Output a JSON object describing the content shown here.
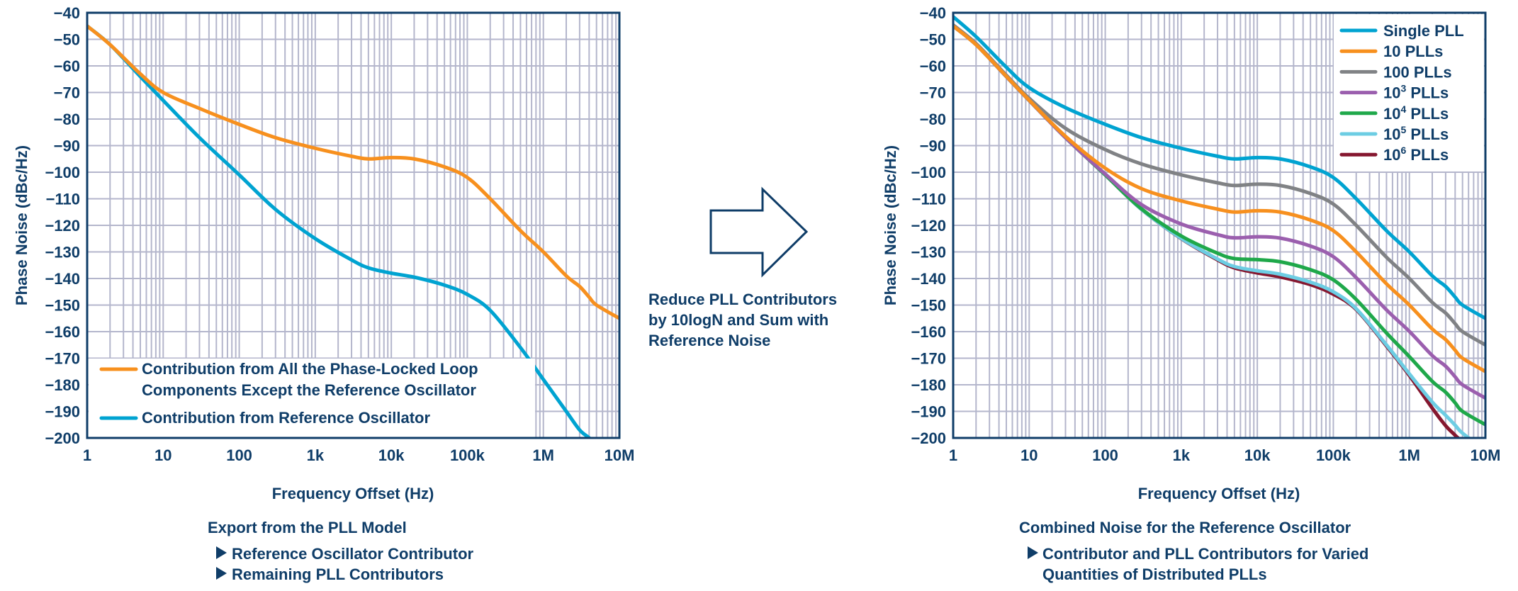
{
  "colors": {
    "text": "#0f3d68",
    "grid": "#b4b6cc",
    "axis": "#0f3d68"
  },
  "arrow_text": [
    "Reduce PLL Contributors",
    "by 10logN and Sum with",
    "Reference Noise"
  ],
  "chart_data": [
    {
      "type": "line",
      "xscale": "log",
      "xlabel": "Frequency Offset (Hz)",
      "ylabel": "Phase Noise (dBc/Hz)",
      "xlim": [
        1,
        10000000
      ],
      "ylim": [
        -200,
        -40
      ],
      "grid": true,
      "legend_position": "bottom-left",
      "x_ticks": [
        "1",
        "10",
        "100",
        "1k",
        "10k",
        "100k",
        "1M",
        "10M"
      ],
      "y_ticks": [
        "−40",
        "−50",
        "−60",
        "−70",
        "−80",
        "−90",
        "−100",
        "−110",
        "−120",
        "−130",
        "−140",
        "−150",
        "−160",
        "−170",
        "−180",
        "−190",
        "−200"
      ],
      "caption": "Export from the PLL Model",
      "bullets": [
        "Reference Oscillator Contributor",
        "Remaining PLL Contributors"
      ],
      "x": [
        1,
        2,
        5,
        10,
        30,
        100,
        300,
        1000,
        3000,
        5000,
        10000,
        20000,
        50000,
        100000,
        200000,
        500000,
        1000000,
        2000000,
        3000000,
        4000000,
        5000000,
        10000000
      ],
      "series": [
        {
          "name": "Contribution from All the Phase-Locked Loop Components Except the Reference Oscillator",
          "legend_lines": [
            "Contribution from All the Phase-Locked Loop",
            "Components Except the Reference Oscillator"
          ],
          "color": "#f7901e",
          "values": [
            -45,
            -52,
            -63,
            -70,
            -76,
            -82,
            -87,
            -91,
            -94,
            -95,
            -94.5,
            -95,
            -98,
            -102,
            -110,
            -122,
            -130,
            -139,
            -143,
            -147,
            -150,
            -155
          ]
        },
        {
          "name": "Contribution from Reference Oscillator",
          "legend_lines": [
            "Contribution from Reference Oscillator"
          ],
          "color": "#00a3d1",
          "values": [
            -45,
            -52,
            -64,
            -73,
            -87,
            -101,
            -114,
            -125,
            -133,
            -136,
            -138,
            -139.5,
            -142.5,
            -146,
            -152,
            -166,
            -178,
            -190,
            -197,
            -200,
            -203,
            -215
          ]
        }
      ]
    },
    {
      "type": "line",
      "xscale": "log",
      "xlabel": "Frequency Offset (Hz)",
      "ylabel": "Phase Noise (dBc/Hz)",
      "xlim": [
        1,
        10000000
      ],
      "ylim": [
        -200,
        -40
      ],
      "grid": true,
      "legend_position": "top-right",
      "x_ticks": [
        "1",
        "10",
        "100",
        "1k",
        "10k",
        "100k",
        "1M",
        "10M"
      ],
      "y_ticks": [
        "−40",
        "−50",
        "−60",
        "−70",
        "−80",
        "−90",
        "−100",
        "−110",
        "−120",
        "−130",
        "−140",
        "−150",
        "−160",
        "−170",
        "−180",
        "−190",
        "−200"
      ],
      "caption": "Combined Noise for the Reference Oscillator",
      "bullets": [
        "Contributor and PLL Contributors for Varied",
        "Quantities of Distributed PLLs"
      ],
      "x": [
        1,
        2,
        5,
        10,
        30,
        100,
        300,
        1000,
        3000,
        5000,
        10000,
        20000,
        50000,
        100000,
        200000,
        500000,
        1000000,
        2000000,
        3000000,
        4000000,
        5000000,
        10000000
      ],
      "series": [
        {
          "name": "Single PLL",
          "base": "Single PLL",
          "sup": "",
          "color": "#00a3d1",
          "values": [
            -41.5,
            -49,
            -60.5,
            -68.2,
            -75.7,
            -82,
            -87,
            -91,
            -94,
            -95,
            -94.5,
            -95,
            -98,
            -102,
            -110,
            -122,
            -130,
            -139,
            -143,
            -147,
            -150,
            -155
          ]
        },
        {
          "name": "10 PLLs",
          "base": "10 PLLs",
          "sup": "",
          "color": "#f7901e",
          "values": [
            -45,
            -52,
            -63.9,
            -72.9,
            -86.5,
            -98.5,
            -106.2,
            -110.8,
            -113.9,
            -115,
            -114.5,
            -115,
            -118,
            -122,
            -130,
            -142,
            -150,
            -159,
            -163,
            -167,
            -170,
            -175
          ]
        },
        {
          "name": "100 PLLs",
          "base": "100 PLLs",
          "sup": "",
          "color": "#808285",
          "values": [
            -44.6,
            -51.6,
            -63.5,
            -72.2,
            -83.5,
            -91.5,
            -96.9,
            -101,
            -104,
            -105,
            -104.5,
            -105,
            -108,
            -112,
            -120,
            -132,
            -140,
            -149,
            -153,
            -157,
            -160,
            -165
          ]
        },
        {
          "name": "10^3 PLLs",
          "base": "10",
          "sup": "3",
          "tail": " PLLs",
          "color": "#9b5fae",
          "values": [
            -45,
            -52,
            -64,
            -73,
            -87,
            -100.7,
            -112.2,
            -119.5,
            -123.5,
            -124.7,
            -124.3,
            -124.8,
            -127.8,
            -131.8,
            -139.7,
            -151.8,
            -159.9,
            -169,
            -173,
            -177,
            -180,
            -185
          ]
        },
        {
          "name": "10^4 PLLs",
          "base": "10",
          "sup": "4",
          "tail": " PLLs",
          "color": "#1fa84a",
          "values": [
            -45,
            -52,
            -64,
            -73,
            -87,
            -101,
            -113.8,
            -124,
            -130.5,
            -132.5,
            -132.9,
            -133.7,
            -136.7,
            -140.5,
            -147.9,
            -160.5,
            -169.4,
            -178.7,
            -182.8,
            -186.8,
            -190,
            -195
          ]
        },
        {
          "name": "10^5 PLLs",
          "base": "10",
          "sup": "5",
          "tail": " PLLs",
          "color": "#6dcde3",
          "values": [
            -45,
            -52,
            -64,
            -73,
            -87,
            -101,
            -114,
            -124.9,
            -132.7,
            -135.5,
            -137.1,
            -138.4,
            -141.4,
            -145,
            -151.4,
            -165,
            -175.9,
            -186.5,
            -191.5,
            -195.2,
            -198.2,
            -204.6
          ]
        },
        {
          "name": "10^6 PLLs",
          "base": "10",
          "sup": "6",
          "tail": " PLLs",
          "color": "#85172f",
          "values": [
            -45,
            -52,
            -64,
            -73,
            -87,
            -101,
            -114,
            -125,
            -133,
            -136,
            -137.9,
            -139.4,
            -142.3,
            -145.9,
            -151.7,
            -165.4,
            -176.5,
            -188.8,
            -195.4,
            -199,
            -202,
            -214
          ]
        }
      ]
    }
  ]
}
